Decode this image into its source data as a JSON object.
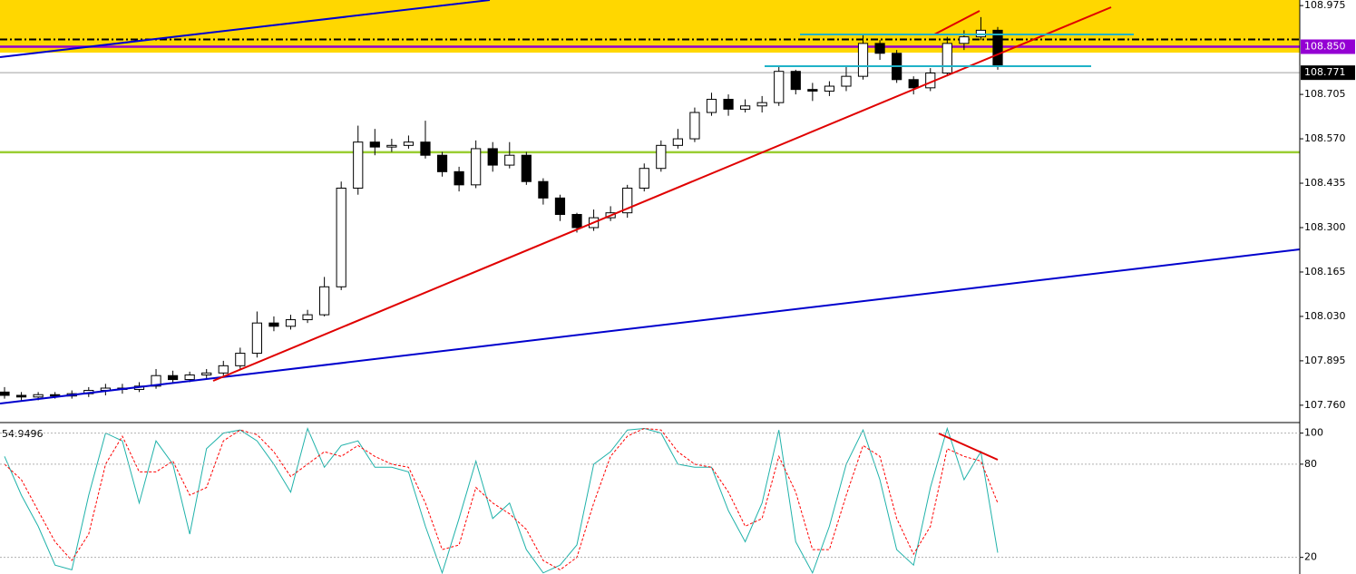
{
  "chart_data": [
    {
      "type": "candlestick",
      "open": [
        107.8,
        107.79,
        107.785,
        107.792,
        107.788,
        107.795,
        107.805,
        107.812,
        107.808,
        107.818,
        107.85,
        107.838,
        107.852,
        107.858,
        107.88,
        107.918,
        108.01,
        108.0,
        108.02,
        108.035,
        108.12,
        108.42,
        108.56,
        108.545,
        108.55,
        108.56,
        108.52,
        108.47,
        108.43,
        108.54,
        108.49,
        108.52,
        108.44,
        108.39,
        108.34,
        108.3,
        108.33,
        108.345,
        108.42,
        108.48,
        108.55,
        108.57,
        108.65,
        108.69,
        108.66,
        108.67,
        108.68,
        108.775,
        108.72,
        108.715,
        108.73,
        108.76,
        108.86,
        108.83,
        108.75,
        108.725,
        108.77,
        108.86,
        108.88,
        108.9
      ],
      "high": [
        107.815,
        107.8,
        107.8,
        107.8,
        107.805,
        107.815,
        107.825,
        107.825,
        107.83,
        107.87,
        107.865,
        107.862,
        107.87,
        107.895,
        107.935,
        108.045,
        108.03,
        108.035,
        108.05,
        108.15,
        108.44,
        108.61,
        108.6,
        108.57,
        108.58,
        108.625,
        108.53,
        108.485,
        108.565,
        108.56,
        108.56,
        108.53,
        108.45,
        108.4,
        108.345,
        108.355,
        108.365,
        108.43,
        108.495,
        108.565,
        108.6,
        108.665,
        108.71,
        108.705,
        108.69,
        108.7,
        108.79,
        108.78,
        108.74,
        108.745,
        108.79,
        108.885,
        108.87,
        108.84,
        108.76,
        108.785,
        108.88,
        108.9,
        108.94,
        108.91
      ],
      "low": [
        107.78,
        107.775,
        107.775,
        107.78,
        107.78,
        107.785,
        107.79,
        107.795,
        107.8,
        107.81,
        107.83,
        107.83,
        107.84,
        107.85,
        107.87,
        107.905,
        107.985,
        107.99,
        108.01,
        108.03,
        108.11,
        108.4,
        108.52,
        108.53,
        108.54,
        108.51,
        108.455,
        108.41,
        108.42,
        108.47,
        108.48,
        108.43,
        108.37,
        108.32,
        108.285,
        108.29,
        108.32,
        108.33,
        108.41,
        108.47,
        108.54,
        108.56,
        108.64,
        108.64,
        108.65,
        108.65,
        108.67,
        108.705,
        108.685,
        108.7,
        108.715,
        108.75,
        108.81,
        108.74,
        108.705,
        108.715,
        108.76,
        108.84,
        108.87,
        108.78
      ],
      "close": [
        107.79,
        107.785,
        107.792,
        107.788,
        107.795,
        107.805,
        107.812,
        107.808,
        107.818,
        107.85,
        107.838,
        107.852,
        107.858,
        107.88,
        107.918,
        108.01,
        108.0,
        108.02,
        108.035,
        108.12,
        108.42,
        108.56,
        108.545,
        108.55,
        108.56,
        108.52,
        108.47,
        108.43,
        108.54,
        108.49,
        108.52,
        108.44,
        108.39,
        108.34,
        108.3,
        108.33,
        108.345,
        108.42,
        108.48,
        108.55,
        108.57,
        108.65,
        108.69,
        108.66,
        108.67,
        108.68,
        108.775,
        108.72,
        108.715,
        108.73,
        108.76,
        108.86,
        108.83,
        108.75,
        108.725,
        108.77,
        108.86,
        108.88,
        108.9,
        108.79
      ],
      "ylim": [
        107.71,
        108.992
      ],
      "yticks": [
        108.975,
        108.705,
        {
          "value": 108.57,
          "label": "108.570"
        },
        108.435,
        {
          "value": 108.3,
          "label": "108.300"
        },
        108.165,
        {
          "value": 108.03,
          "label": "108.030"
        },
        107.895,
        {
          "value": 107.76,
          "label": "107.760"
        }
      ],
      "zones": [
        {
          "from": 108.832,
          "to": 108.992,
          "color": "#ffd700"
        }
      ],
      "hlines": [
        {
          "value": 108.872,
          "color": "#000000",
          "style": "dashdot"
        },
        {
          "value": 108.85,
          "color": "#9400d3",
          "style": "solid"
        },
        {
          "value": 108.771,
          "color": "#a0a0a0",
          "style": "solid"
        },
        {
          "value": 108.529,
          "color": "#9acd32",
          "style": "solid"
        }
      ],
      "price_labels": [
        {
          "value": 108.85,
          "label": "108.850",
          "color": "#9400d3"
        },
        {
          "value": 108.771,
          "label": "108.771",
          "color": "#000000"
        }
      ]
    },
    {
      "type": "line",
      "label": "54.9496",
      "series": [
        {
          "color": "#20b2aa",
          "style": "solid",
          "values": [
            85,
            60,
            40,
            15,
            12,
            60,
            100,
            95,
            55,
            95,
            80,
            35,
            90,
            100,
            102,
            95,
            80,
            62,
            103,
            78,
            92,
            95,
            78,
            78,
            75,
            40,
            10,
            45,
            82,
            45,
            55,
            25,
            10,
            15,
            28,
            80,
            88,
            102,
            103,
            100,
            80,
            78,
            78,
            50,
            30,
            55,
            102,
            30,
            10,
            40,
            80,
            102,
            70,
            25,
            15,
            65,
            103,
            70,
            88,
            23
          ]
        },
        {
          "color": "#ff0000",
          "style": "dashed",
          "values": [
            80,
            70,
            50,
            30,
            18,
            35,
            80,
            98,
            75,
            75,
            82,
            60,
            65,
            95,
            102,
            99,
            88,
            72,
            80,
            88,
            85,
            92,
            85,
            80,
            78,
            55,
            25,
            28,
            65,
            55,
            48,
            38,
            18,
            12,
            20,
            55,
            85,
            98,
            103,
            102,
            88,
            80,
            78,
            62,
            40,
            45,
            85,
            62,
            25,
            25,
            60,
            92,
            85,
            45,
            22,
            40,
            90,
            85,
            82,
            55
          ]
        }
      ],
      "ylim": [
        9.3,
        106.2
      ],
      "yticks": [
        100,
        80,
        20
      ]
    }
  ]
}
